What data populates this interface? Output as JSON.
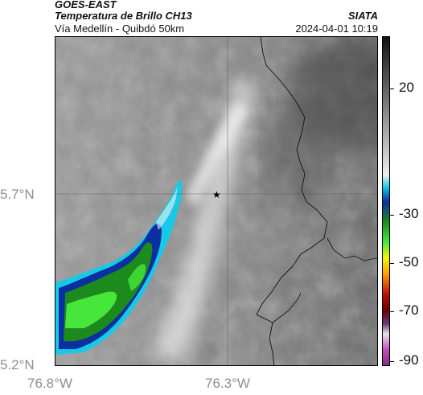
{
  "header": {
    "title_line1": "GOES-EAST",
    "title_line2": "Temperatura de Brillo CH13",
    "subtitle": "Vía Medellín - Quibdó 50km",
    "organization": "SIATA",
    "timestamp": "2024-04-01 10:19"
  },
  "map": {
    "lat_labels": [
      "5.7°N",
      "5.2°N"
    ],
    "lon_labels": [
      "76.8°W",
      "76.3°W"
    ],
    "marker_icon": "star-icon",
    "colors": {
      "frame": "#000000",
      "grid": "#555555",
      "border": "#111111"
    }
  },
  "colorbar": {
    "tick_labels": [
      "20",
      "-30",
      "-50",
      "-70",
      "-90"
    ],
    "colors": [
      "#1e1e1e",
      "#7a7a7a",
      "#f4f4f4",
      "#17c9e6",
      "#0b2fa1",
      "#1c8a1c",
      "#47e63a",
      "#f3f40c",
      "#ff9b00",
      "#c20e0e",
      "#6b0000",
      "#6b3a7a",
      "#dcdcdc",
      "#c24bb9"
    ]
  }
}
